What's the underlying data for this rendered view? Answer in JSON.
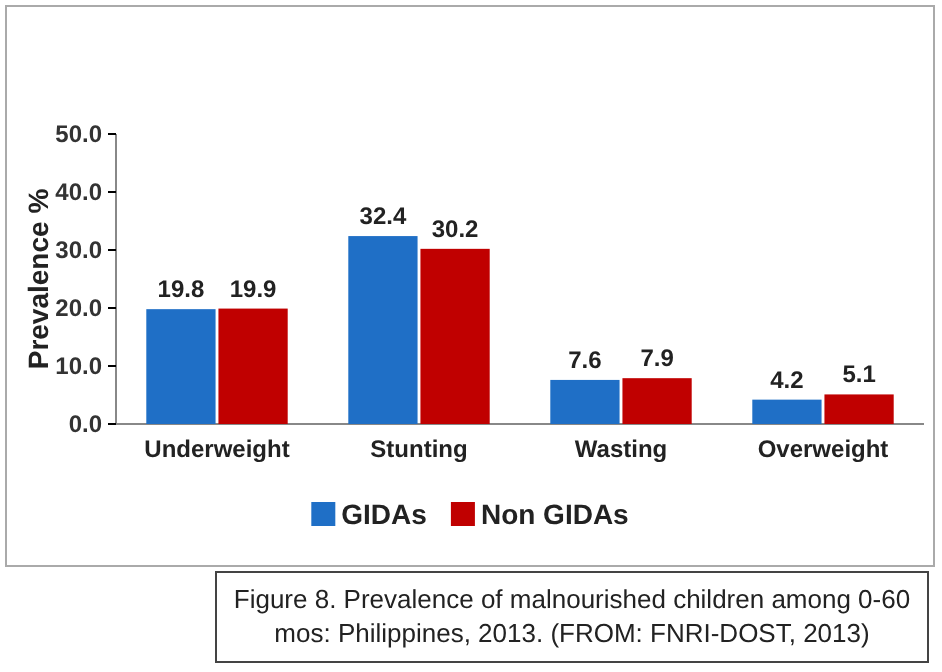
{
  "chart_data": {
    "type": "bar",
    "ylabel": "Prevalence %",
    "categories": [
      "Underweight",
      "Stunting",
      "Wasting",
      "Overweight"
    ],
    "series": [
      {
        "name": "GIDAs",
        "color": "#1f6fc6",
        "values": [
          19.8,
          32.4,
          7.6,
          4.2
        ]
      },
      {
        "name": "Non GIDAs",
        "color": "#c00000",
        "values": [
          19.9,
          30.2,
          7.9,
          5.1
        ]
      }
    ],
    "ylim": [
      0,
      50
    ],
    "yticks": [
      {
        "value": 0,
        "label": "0.0"
      },
      {
        "value": 10,
        "label": "10.0"
      },
      {
        "value": 20,
        "label": "20.0"
      },
      {
        "value": 30,
        "label": "30.0"
      },
      {
        "value": 40,
        "label": "40.0"
      },
      {
        "value": 50,
        "label": "50.0"
      }
    ],
    "data_labels": true,
    "legend": "bottom",
    "grid": false,
    "annotations": [
      "Figure 8. Prevalence of malnourished children among 0-60 mos: Philippines, 2013. (FROM: FNRI-DOST, 2013)"
    ]
  }
}
